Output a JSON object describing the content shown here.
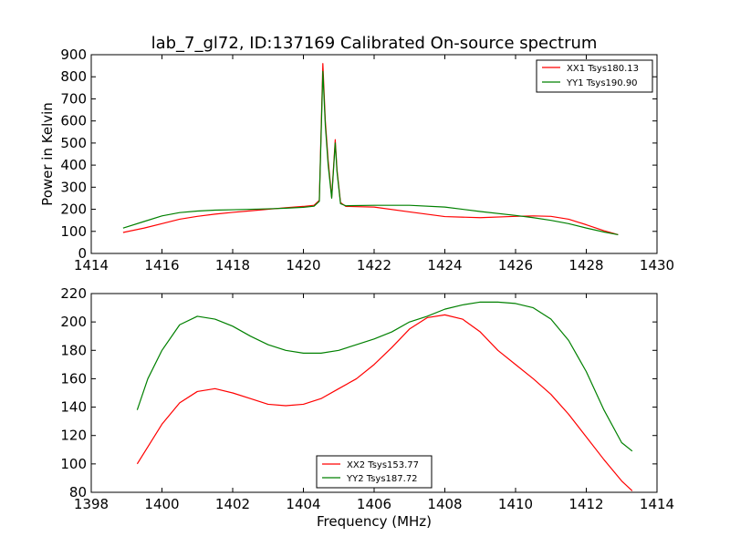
{
  "figure": {
    "title": "lab_7_gl72, ID:137169 Calibrated On-source spectrum",
    "shared_xlabel": "Frequency (MHz)"
  },
  "colors": {
    "xx": "#ff0000",
    "yy": "#008000"
  },
  "chart_data": [
    {
      "type": "line",
      "title": "lab_7_gl72, ID:137169 Calibrated On-source spectrum",
      "xlabel": "",
      "ylabel": "Power in Kelvin",
      "xlim": [
        1414,
        1430
      ],
      "ylim": [
        0,
        900
      ],
      "xticks": [
        1414,
        1416,
        1418,
        1420,
        1422,
        1424,
        1426,
        1428,
        1430
      ],
      "yticks": [
        0,
        100,
        200,
        300,
        400,
        500,
        600,
        700,
        800,
        900
      ],
      "grid": false,
      "legend_position": "top-right",
      "series": [
        {
          "name": "XX1 Tsys180.13",
          "color": "#ff0000",
          "x": [
            1414.9,
            1415.5,
            1416.0,
            1416.5,
            1417.0,
            1417.5,
            1418.0,
            1418.5,
            1419.0,
            1419.5,
            1420.0,
            1420.3,
            1420.45,
            1420.55,
            1420.62,
            1420.7,
            1420.8,
            1420.9,
            1420.95,
            1421.05,
            1421.2,
            1422.0,
            1423.0,
            1424.0,
            1425.0,
            1426.0,
            1426.5,
            1427.0,
            1427.5,
            1428.0,
            1428.5,
            1428.9
          ],
          "y": [
            95,
            115,
            135,
            155,
            168,
            178,
            186,
            193,
            200,
            207,
            213,
            218,
            240,
            860,
            600,
            420,
            255,
            515,
            380,
            230,
            213,
            210,
            188,
            167,
            162,
            168,
            170,
            168,
            155,
            130,
            103,
            85
          ]
        },
        {
          "name": "YY1 Tsys190.90",
          "color": "#008000",
          "x": [
            1414.9,
            1415.5,
            1416.0,
            1416.5,
            1417.0,
            1417.5,
            1418.0,
            1418.5,
            1419.0,
            1419.5,
            1420.0,
            1420.3,
            1420.45,
            1420.55,
            1420.62,
            1420.7,
            1420.8,
            1420.9,
            1420.95,
            1421.05,
            1421.2,
            1422.0,
            1423.0,
            1424.0,
            1425.0,
            1426.0,
            1426.5,
            1427.0,
            1427.5,
            1428.0,
            1428.5,
            1428.9
          ],
          "y": [
            115,
            145,
            170,
            185,
            192,
            196,
            198,
            200,
            202,
            205,
            209,
            214,
            236,
            825,
            580,
            400,
            250,
            500,
            370,
            225,
            216,
            218,
            218,
            210,
            190,
            172,
            162,
            150,
            135,
            115,
            97,
            85
          ]
        }
      ]
    },
    {
      "type": "line",
      "title": "",
      "xlabel": "Frequency (MHz)",
      "ylabel": "",
      "xlim": [
        1398,
        1414
      ],
      "ylim": [
        80,
        220
      ],
      "xticks": [
        1398,
        1400,
        1402,
        1404,
        1406,
        1408,
        1410,
        1412,
        1414
      ],
      "yticks": [
        80,
        100,
        120,
        140,
        160,
        180,
        200,
        220
      ],
      "grid": false,
      "legend_position": "bottom-center",
      "series": [
        {
          "name": "XX2 Tsys153.77",
          "color": "#ff0000",
          "x": [
            1399.3,
            1399.6,
            1400.0,
            1400.5,
            1401.0,
            1401.5,
            1402.0,
            1402.5,
            1403.0,
            1403.5,
            1404.0,
            1404.5,
            1405.0,
            1405.5,
            1406.0,
            1406.5,
            1407.0,
            1407.5,
            1408.0,
            1408.5,
            1409.0,
            1409.5,
            1410.0,
            1410.5,
            1411.0,
            1411.5,
            1412.0,
            1412.5,
            1413.0,
            1413.3
          ],
          "y": [
            100,
            112,
            128,
            143,
            151,
            153,
            150,
            146,
            142,
            141,
            142,
            146,
            153,
            160,
            170,
            182,
            195,
            203,
            205,
            202,
            193,
            180,
            170,
            160,
            149,
            135,
            119,
            103,
            88,
            81
          ]
        },
        {
          "name": "YY2 Tsys187.72",
          "color": "#008000",
          "x": [
            1399.3,
            1399.6,
            1400.0,
            1400.5,
            1401.0,
            1401.5,
            1402.0,
            1402.5,
            1403.0,
            1403.5,
            1404.0,
            1404.5,
            1405.0,
            1405.5,
            1406.0,
            1406.5,
            1407.0,
            1407.5,
            1408.0,
            1408.5,
            1409.0,
            1409.5,
            1410.0,
            1410.5,
            1411.0,
            1411.5,
            1412.0,
            1412.5,
            1413.0,
            1413.3
          ],
          "y": [
            138,
            160,
            180,
            198,
            204,
            202,
            197,
            190,
            184,
            180,
            178,
            178,
            180,
            184,
            188,
            193,
            200,
            204,
            209,
            212,
            214,
            214,
            213,
            210,
            202,
            187,
            165,
            138,
            115,
            109
          ]
        }
      ]
    }
  ]
}
